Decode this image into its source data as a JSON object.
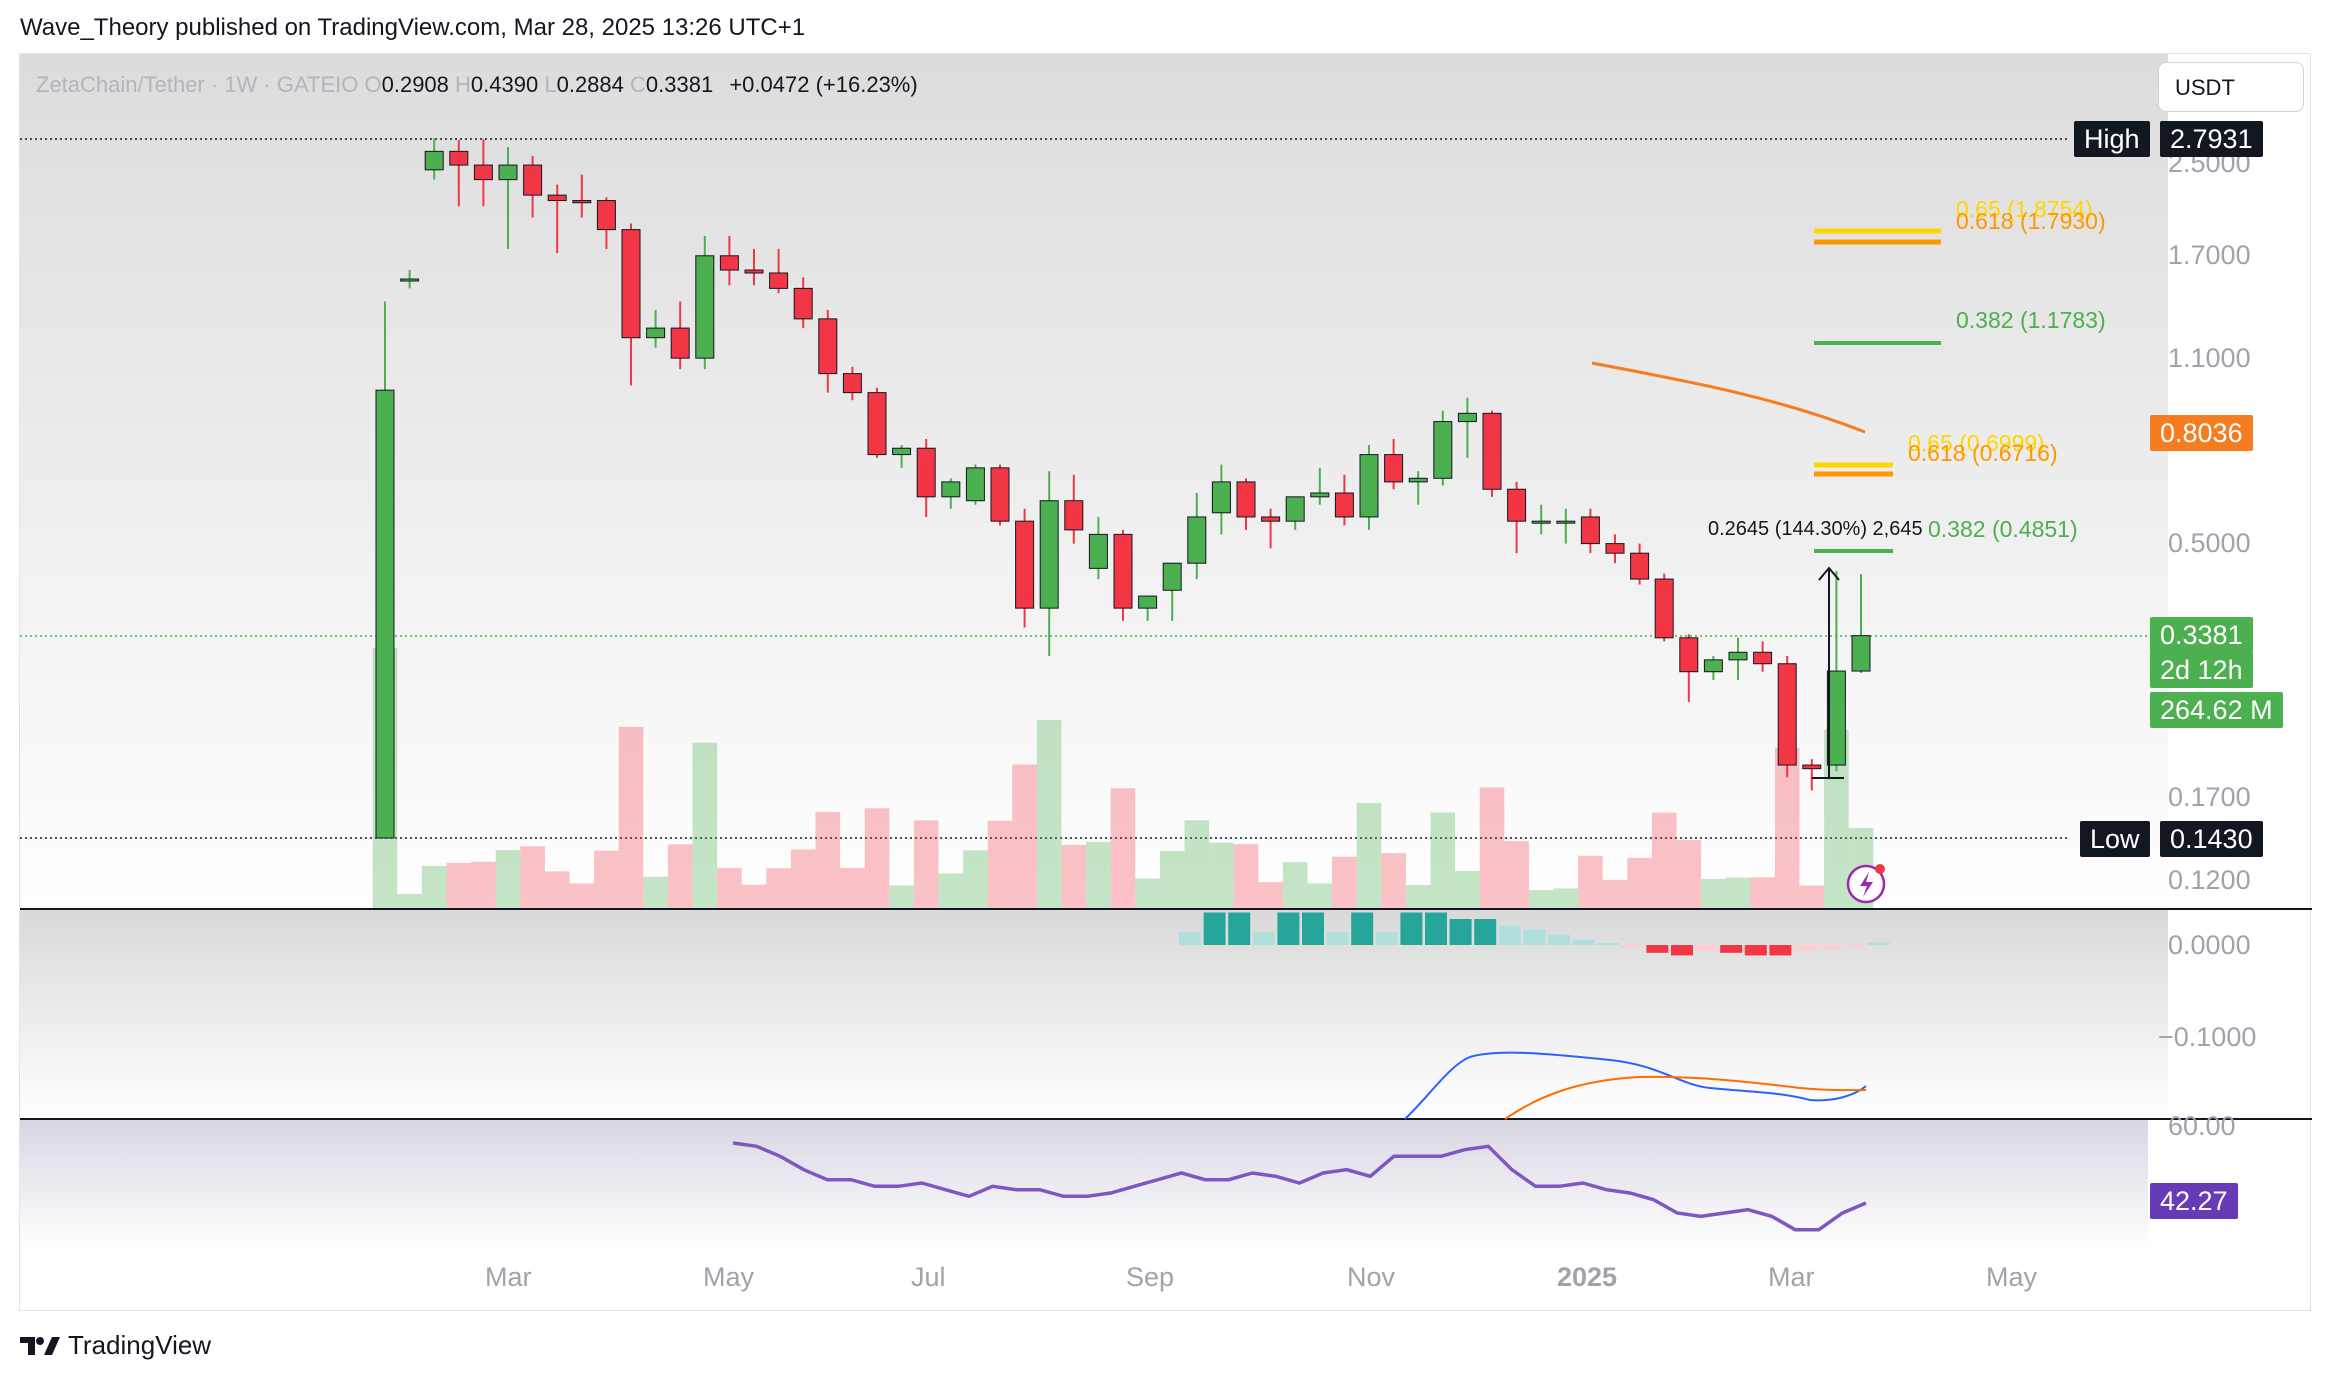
{
  "header": {
    "publisher_line": "Wave_Theory published on TradingView.com, Mar 28, 2025 13:26 UTC+1"
  },
  "symbol": {
    "name": "ZetaChain/Tether · 1W · GATEIO",
    "open_label": "O",
    "open": "0.2908",
    "high_label": "H",
    "high": "0.4390",
    "low_label": "L",
    "low": "0.2884",
    "close_label": "C",
    "close": "0.3381",
    "change": "+0.0472 (+16.23%)"
  },
  "currency_button": "USDT",
  "price_tags": {
    "high_label": "High",
    "high_value": "2.7931",
    "low_label": "Low",
    "low_value": "0.1430",
    "ma_value": "0.8036",
    "last_price": "0.3381",
    "countdown": "2d 12h",
    "volume": "264.62 M",
    "rsi_value": "42.27"
  },
  "price_axis": [
    "2.5000",
    "1.7000",
    "1.1000",
    "0.5000",
    "0.1700",
    "0.1200"
  ],
  "macd_axis": [
    "0.0000",
    "−0.1000"
  ],
  "rsi_axis": [
    "60.00"
  ],
  "time_axis": [
    "Mar",
    "May",
    "Jul",
    "Sep",
    "Nov",
    "2025",
    "Mar",
    "May"
  ],
  "fib_levels": {
    "upper_top": "0.65 (1.8754)",
    "upper_618": "0.618 (1.7930)",
    "upper_382": "0.382 (1.1783)",
    "lower_top": "0.65 (0.6999)",
    "lower_618": "0.618 (0.6716)",
    "lower_382": "0.382 (0.4851)"
  },
  "measure_label": "0.2645 (144.30%) 2,645",
  "footer": {
    "brand": "TradingView"
  },
  "colors": {
    "up": "#4caf50",
    "down": "#f23645",
    "ma": "#f57c1f",
    "rsi": "#7e57c2",
    "macd": "#2962ff",
    "signal": "#ff6d00",
    "fib_gold": "#ffd600",
    "fib_orange": "#ff9800",
    "fib_green": "#4caf50"
  },
  "chart_data": {
    "type": "candlestick",
    "title": "ZetaChain/Tether · 1W · GATEIO",
    "scale": "log",
    "ylim": [
      0.12,
      2.7931
    ],
    "annotations": {
      "high": 2.7931,
      "low": 0.143,
      "ma_last": 0.8036
    },
    "candles": [
      {
        "o": 0.143,
        "h": 1.4,
        "l": 0.143,
        "c": 0.96
      },
      {
        "o": 1.54,
        "h": 1.6,
        "l": 1.48,
        "c": 1.54
      },
      {
        "o": 2.45,
        "h": 2.8,
        "l": 2.35,
        "c": 2.65
      },
      {
        "o": 2.65,
        "h": 2.78,
        "l": 2.1,
        "c": 2.5
      },
      {
        "o": 2.5,
        "h": 2.79,
        "l": 2.1,
        "c": 2.35
      },
      {
        "o": 2.35,
        "h": 2.7,
        "l": 1.75,
        "c": 2.5
      },
      {
        "o": 2.5,
        "h": 2.6,
        "l": 2.0,
        "c": 2.2
      },
      {
        "o": 2.2,
        "h": 2.3,
        "l": 1.72,
        "c": 2.15
      },
      {
        "o": 2.15,
        "h": 2.4,
        "l": 2.0,
        "c": 2.13
      },
      {
        "o": 2.15,
        "h": 2.18,
        "l": 1.75,
        "c": 1.9
      },
      {
        "o": 1.9,
        "h": 1.95,
        "l": 0.98,
        "c": 1.2
      },
      {
        "o": 1.2,
        "h": 1.35,
        "l": 1.15,
        "c": 1.25
      },
      {
        "o": 1.25,
        "h": 1.4,
        "l": 1.05,
        "c": 1.1
      },
      {
        "o": 1.1,
        "h": 1.85,
        "l": 1.05,
        "c": 1.7
      },
      {
        "o": 1.7,
        "h": 1.85,
        "l": 1.5,
        "c": 1.6
      },
      {
        "o": 1.6,
        "h": 1.75,
        "l": 1.5,
        "c": 1.58
      },
      {
        "o": 1.58,
        "h": 1.75,
        "l": 1.45,
        "c": 1.48
      },
      {
        "o": 1.48,
        "h": 1.55,
        "l": 1.25,
        "c": 1.3
      },
      {
        "o": 1.3,
        "h": 1.35,
        "l": 0.95,
        "c": 1.03
      },
      {
        "o": 1.03,
        "h": 1.06,
        "l": 0.92,
        "c": 0.95
      },
      {
        "o": 0.95,
        "h": 0.97,
        "l": 0.72,
        "c": 0.73
      },
      {
        "o": 0.73,
        "h": 0.76,
        "l": 0.69,
        "c": 0.75
      },
      {
        "o": 0.75,
        "h": 0.78,
        "l": 0.56,
        "c": 0.61
      },
      {
        "o": 0.61,
        "h": 0.66,
        "l": 0.58,
        "c": 0.65
      },
      {
        "o": 0.6,
        "h": 0.7,
        "l": 0.59,
        "c": 0.69
      },
      {
        "o": 0.69,
        "h": 0.7,
        "l": 0.54,
        "c": 0.55
      },
      {
        "o": 0.55,
        "h": 0.58,
        "l": 0.35,
        "c": 0.38
      },
      {
        "o": 0.38,
        "h": 0.68,
        "l": 0.31,
        "c": 0.6
      },
      {
        "o": 0.6,
        "h": 0.67,
        "l": 0.5,
        "c": 0.53
      },
      {
        "o": 0.45,
        "h": 0.56,
        "l": 0.43,
        "c": 0.52
      },
      {
        "o": 0.52,
        "h": 0.53,
        "l": 0.36,
        "c": 0.38
      },
      {
        "o": 0.38,
        "h": 0.4,
        "l": 0.36,
        "c": 0.4
      },
      {
        "o": 0.41,
        "h": 0.46,
        "l": 0.36,
        "c": 0.46
      },
      {
        "o": 0.46,
        "h": 0.62,
        "l": 0.43,
        "c": 0.56
      },
      {
        "o": 0.57,
        "h": 0.7,
        "l": 0.52,
        "c": 0.65
      },
      {
        "o": 0.65,
        "h": 0.66,
        "l": 0.53,
        "c": 0.56
      },
      {
        "o": 0.56,
        "h": 0.58,
        "l": 0.49,
        "c": 0.55
      },
      {
        "o": 0.55,
        "h": 0.61,
        "l": 0.53,
        "c": 0.61
      },
      {
        "o": 0.61,
        "h": 0.69,
        "l": 0.59,
        "c": 0.62
      },
      {
        "o": 0.62,
        "h": 0.67,
        "l": 0.54,
        "c": 0.56
      },
      {
        "o": 0.56,
        "h": 0.76,
        "l": 0.53,
        "c": 0.73
      },
      {
        "o": 0.73,
        "h": 0.78,
        "l": 0.63,
        "c": 0.65
      },
      {
        "o": 0.65,
        "h": 0.68,
        "l": 0.59,
        "c": 0.66
      },
      {
        "o": 0.66,
        "h": 0.88,
        "l": 0.64,
        "c": 0.84
      },
      {
        "o": 0.84,
        "h": 0.93,
        "l": 0.72,
        "c": 0.87
      },
      {
        "o": 0.87,
        "h": 0.88,
        "l": 0.61,
        "c": 0.63
      },
      {
        "o": 0.63,
        "h": 0.65,
        "l": 0.48,
        "c": 0.55
      },
      {
        "o": 0.55,
        "h": 0.59,
        "l": 0.52,
        "c": 0.55
      },
      {
        "o": 0.55,
        "h": 0.58,
        "l": 0.5,
        "c": 0.55
      },
      {
        "o": 0.56,
        "h": 0.58,
        "l": 0.48,
        "c": 0.5
      },
      {
        "o": 0.5,
        "h": 0.52,
        "l": 0.46,
        "c": 0.48
      },
      {
        "o": 0.48,
        "h": 0.5,
        "l": 0.42,
        "c": 0.43
      },
      {
        "o": 0.43,
        "h": 0.44,
        "l": 0.33,
        "c": 0.335
      },
      {
        "o": 0.335,
        "h": 0.34,
        "l": 0.255,
        "c": 0.29
      },
      {
        "o": 0.29,
        "h": 0.31,
        "l": 0.28,
        "c": 0.305
      },
      {
        "o": 0.305,
        "h": 0.335,
        "l": 0.28,
        "c": 0.315
      },
      {
        "o": 0.315,
        "h": 0.33,
        "l": 0.29,
        "c": 0.3
      },
      {
        "o": 0.3,
        "h": 0.31,
        "l": 0.185,
        "c": 0.195
      },
      {
        "o": 0.195,
        "h": 0.2,
        "l": 0.175,
        "c": 0.192
      },
      {
        "o": 0.195,
        "h": 0.445,
        "l": 0.19,
        "c": 0.2908
      },
      {
        "o": 0.2908,
        "h": 0.439,
        "l": 0.2884,
        "c": 0.3381
      }
    ],
    "rsi": [
      57,
      56,
      53,
      49,
      46,
      46,
      44,
      44,
      45,
      43,
      41,
      44,
      43,
      43,
      41,
      41,
      42,
      44,
      46,
      48,
      46,
      46,
      48,
      47,
      45,
      48,
      49,
      47,
      53,
      53,
      53,
      55,
      56,
      49,
      44,
      44,
      45,
      43,
      42,
      40,
      36,
      35,
      36,
      37,
      35,
      31,
      31,
      36,
      39
    ],
    "macd_hist": [
      0.01,
      0.025,
      0.025,
      0.01,
      0.025,
      0.025,
      0.01,
      0.025,
      0.01,
      0.025,
      0.025,
      0.02,
      0.02,
      0.015,
      0.012,
      0.008,
      0.004,
      0.0,
      -0.002,
      -0.006,
      -0.008,
      -0.004,
      -0.006,
      -0.008,
      -0.008,
      -0.004,
      -0.003,
      -0.001,
      0.002
    ]
  }
}
